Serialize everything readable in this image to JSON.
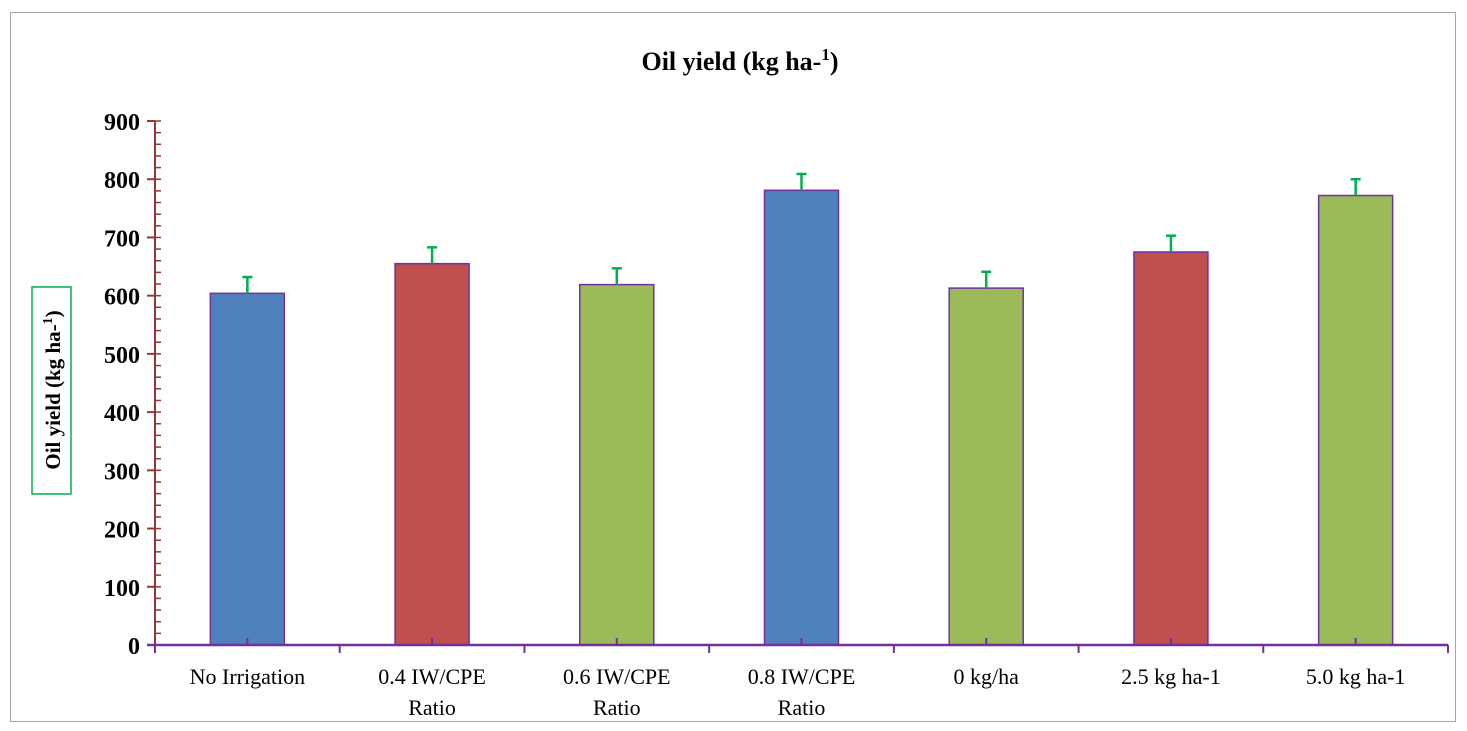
{
  "chart_data": {
    "type": "bar",
    "title": "Oil yield (kg ha-",
    "title_sup": "1",
    "title_end": ")",
    "ylabel": "Oil yield (kg ha-",
    "ylabel_sup": "1",
    "ylabel_end": ")",
    "xlabel": "",
    "ylim": [
      0,
      900
    ],
    "yticks": [
      "0",
      "100",
      "200",
      "300",
      "400",
      "500",
      "600",
      "700",
      "800",
      "900"
    ],
    "categories": [
      [
        "No Irrigation"
      ],
      [
        "0.4 IW/CPE",
        "Ratio"
      ],
      [
        "0.6 IW/CPE",
        "Ratio"
      ],
      [
        "0.8 IW/CPE",
        "Ratio"
      ],
      [
        "0 kg/ha"
      ],
      [
        "2.5 kg ha-1"
      ],
      [
        "5.0 kg ha-1"
      ]
    ],
    "values": [
      604,
      655,
      619,
      781,
      613,
      675,
      772
    ],
    "errors": [
      28,
      28,
      28,
      28,
      28,
      28,
      28
    ],
    "bar_colors": [
      "#4f81bd",
      "#c0504d",
      "#9bbb59",
      "#4f81bd",
      "#9bbb59",
      "#c0504d",
      "#9bbb59"
    ],
    "bar_edge_color": "#7030a0",
    "axis_color": "#7030a0",
    "tick_color": "#943634",
    "error_bar_color": "#00b050",
    "ylabel_box_color": "#00b050",
    "grid": false,
    "legend": "none"
  }
}
